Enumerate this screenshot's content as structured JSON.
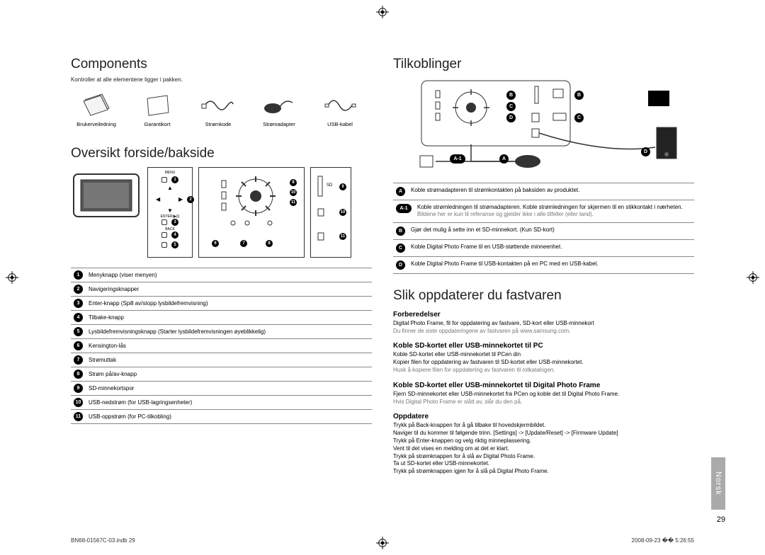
{
  "left": {
    "components_title": "Components",
    "components_sub": "Kontroller at alle elementene ligger i pakken.",
    "components": [
      {
        "label": "Brukerveiledning"
      },
      {
        "label": "Garantikort"
      },
      {
        "label": "Strømkode"
      },
      {
        "label": "Strømadapter"
      },
      {
        "label": "USB-kabel"
      }
    ],
    "frontback_title": "Oversikt forside/bakside",
    "frontback_labels": {
      "menu": "MENU",
      "enter": "ENTER(▶||)",
      "back": "BACK"
    },
    "parts": [
      {
        "n": "1",
        "label": "Menyknapp (viser menyen)"
      },
      {
        "n": "2",
        "label": "Navigeringsknapper"
      },
      {
        "n": "3",
        "label": "Enter-knapp (Spill av/stopp lysbildefremvisning)"
      },
      {
        "n": "4",
        "label": "Tilbake-knapp"
      },
      {
        "n": "5",
        "label": "Lysbildefremvisningsknapp (Starter lysbildefremvisningen øyeblikkelig)"
      },
      {
        "n": "6",
        "label": "Kensington-lås"
      },
      {
        "n": "7",
        "label": "Strømuttak"
      },
      {
        "n": "8",
        "label": "Strøm på/av-knapp"
      },
      {
        "n": "9",
        "label": "SD-minnekortspor"
      },
      {
        "n": "10",
        "label": "USB-nedstrøm (for USB-lagringsenheter)"
      },
      {
        "n": "11",
        "label": "USB-oppstrøm (for PC-tilkobling)"
      }
    ]
  },
  "right": {
    "conn_title": "Tilkoblinger",
    "conn_items": [
      {
        "k": "A",
        "type": "circ",
        "label": "Koble strømadapteren til strømkontakten på baksiden av produktet."
      },
      {
        "k": "A-1",
        "type": "oval",
        "label": "Koble strømledningen til strømadapteren. Koble strømledningen for skjermen til en stikkontakt i nærheten.",
        "grey": "Bildene her er kun til referanse og gjelder ikke i alle tilfeller (eller land)."
      },
      {
        "k": "B",
        "type": "circ",
        "label": "Gjør det mulig å sette inn et SD-minnekort. (Kun SD-kort)"
      },
      {
        "k": "C",
        "type": "circ",
        "label": "Koble Digital Photo Frame til en USB-støttende minneenhet."
      },
      {
        "k": "D",
        "type": "circ",
        "label": "Koble Digital Photo Frame til USB-kontakten på en PC med en USB-kabel."
      }
    ],
    "fw_title": "Slik oppdaterer du fastvaren",
    "s1_h": "Forberedelser",
    "s1_b": "Digital Photo Frame, fil for oppdatering av fastvare, SD-kort eller USB-minnekort",
    "s1_g": "Du finner de siste oppdateringene av fastvaren på www.samsung.com.",
    "s2_h": "Koble SD-kortet eller USB-minnekortet til PC",
    "s2_b1": "Koble SD-kortet eller USB-minnekortet til PCen din",
    "s2_b2": "Kopier filen for oppdatering av fastvaren til SD-kortet eller USB-minnekortet.",
    "s2_g": "Husk å kopiere filen for oppdatering av fastvaren til rotkatalogen.",
    "s3_h": "Koble SD-kortet eller USB-minnekortet til Digital Photo Frame",
    "s3_b": "Fjern SD-minnekortet eller USB-minnekortet fra PCen og koble det til Digital Photo Frame.",
    "s3_g": "Hvis Digital Photo Frame er slått av, slår du den på.",
    "s4_h": "Oppdatere",
    "s4_lines": [
      "Trykk på Back-knappen for å gå tilbake til hovedskjermbildet.",
      "Naviger til du kommer til følgende trinn. [Settings] -> [Update/Reset] -> [Firmware Update]",
      "Trykk på Enter-knappen og velg riktig minneplassering.",
      "Vent til det vises en melding om at det er klart.",
      "Trykk på strømknappen for å slå av Digital Photo Frame.",
      "Ta ut SD-kortet eller USB-minnekortet.",
      "Trykk på strømknappen igjen for å slå på Digital Photo Frame."
    ]
  },
  "footer": {
    "left": "BN68-01567C-03.indb   29",
    "right": "2008-09-23   �� 5:26:55"
  },
  "tab": "Norsk",
  "page": "29"
}
